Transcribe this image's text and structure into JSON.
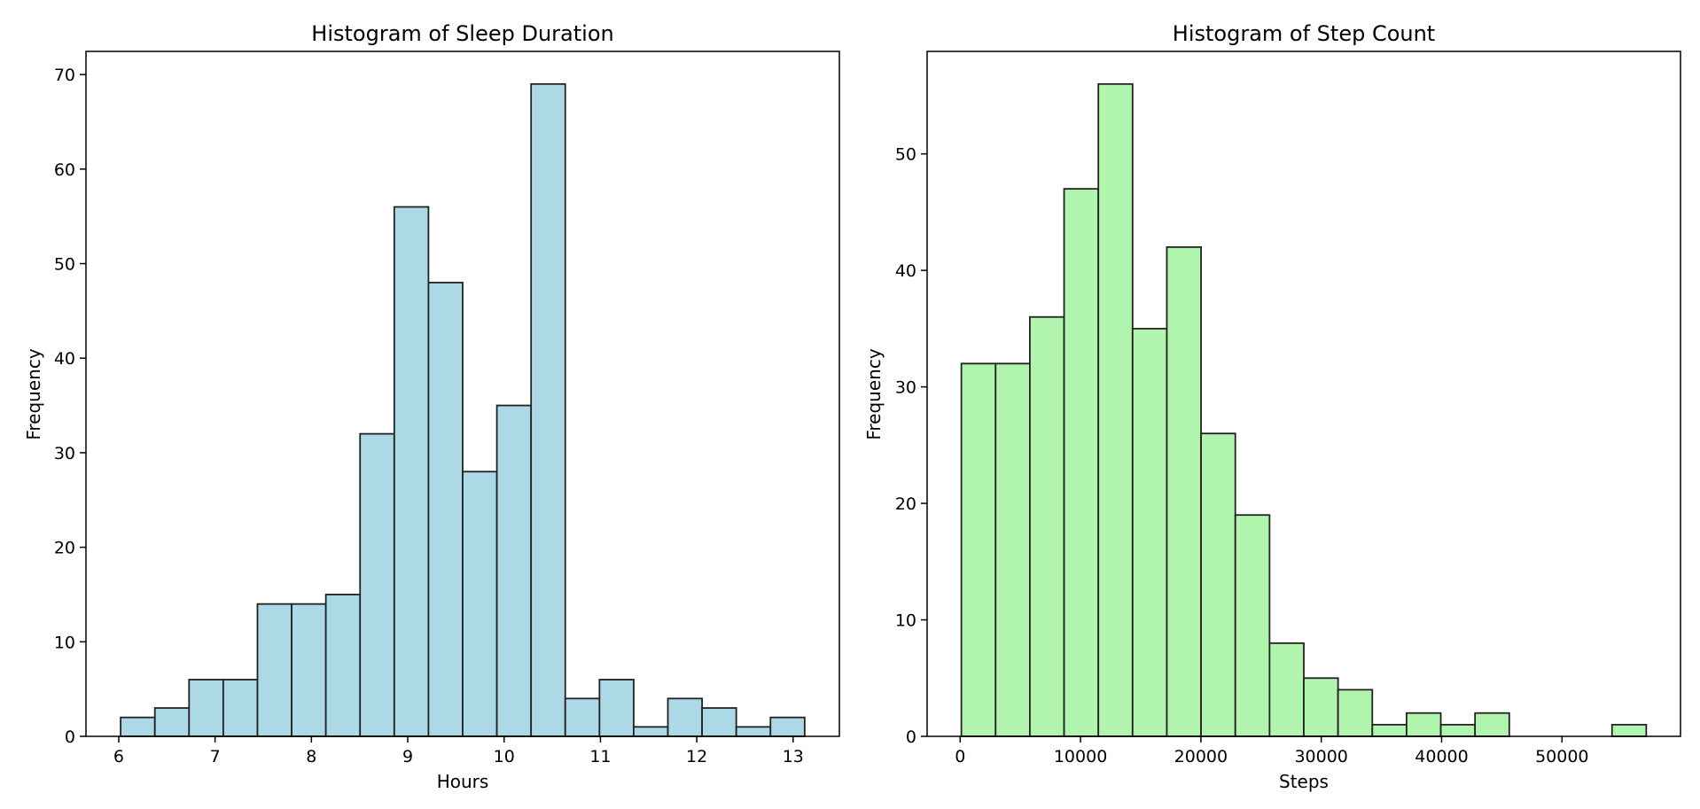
{
  "chart_data": [
    {
      "type": "bar",
      "title": "Histogram of Sleep Duration",
      "xlabel": "Hours",
      "ylabel": "Frequency",
      "color": "#add8e6",
      "edge_color": "#222222",
      "bins": 20,
      "x_range": [
        6.02,
        13.12
      ],
      "xlim": [
        5.66,
        13.48
      ],
      "ylim": [
        0,
        72.45
      ],
      "xticks": [
        6,
        7,
        8,
        9,
        10,
        11,
        12,
        13
      ],
      "yticks": [
        0,
        10,
        20,
        30,
        40,
        50,
        60,
        70
      ],
      "values": [
        2,
        3,
        6,
        6,
        14,
        14,
        15,
        32,
        56,
        48,
        28,
        35,
        69,
        4,
        6,
        1,
        4,
        3,
        1,
        2
      ],
      "grid": false,
      "legend": false
    },
    {
      "type": "bar",
      "title": "Histogram of Step Count",
      "xlabel": "Steps",
      "ylabel": "Frequency",
      "color": "#b0f4ae",
      "edge_color": "#222222",
      "bins": 20,
      "x_range": [
        100,
        57000
      ],
      "xlim": [
        -2745,
        59845
      ],
      "ylim": [
        0,
        58.8
      ],
      "xticks": [
        0,
        10000,
        20000,
        30000,
        40000,
        50000
      ],
      "yticks": [
        0,
        10,
        20,
        30,
        40,
        50
      ],
      "values": [
        32,
        32,
        36,
        47,
        56,
        35,
        42,
        26,
        19,
        8,
        5,
        4,
        1,
        2,
        1,
        2,
        0,
        0,
        0,
        1
      ],
      "grid": false,
      "legend": false
    }
  ]
}
